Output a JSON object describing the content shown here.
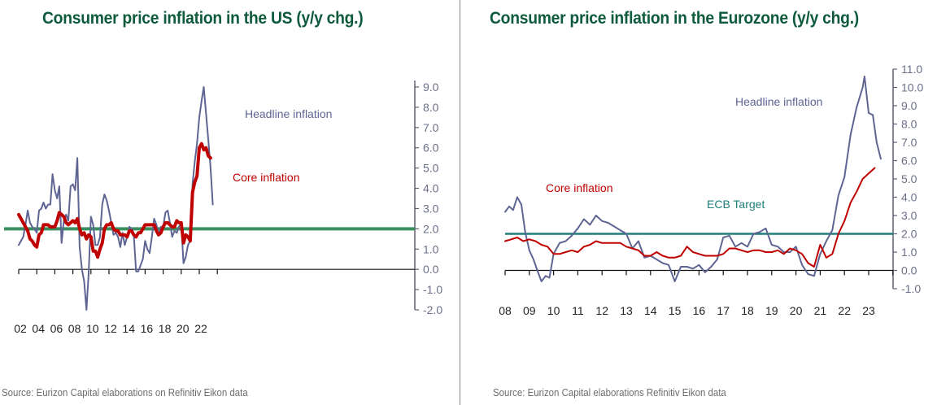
{
  "colors": {
    "title": "#0e5a3c",
    "headline": "#5e6593",
    "core": "#c00000",
    "us_target": "#3a8f5f",
    "ecb_target": "#1f7f7a",
    "axis": "#5f6075",
    "source": "#6d6d6d"
  },
  "chart_data": [
    {
      "type": "line",
      "title": "Consumer price inflation in the US (y/y chg.)",
      "xlabel": "",
      "ylabel": "",
      "x_tick_labels": [
        "02",
        "04",
        "06",
        "08",
        "10",
        "12",
        "14",
        "16",
        "18",
        "20",
        "22"
      ],
      "x_ticks": [
        2002,
        2004,
        2006,
        2008,
        2010,
        2012,
        2014,
        2016,
        2018,
        2020,
        2022
      ],
      "xlim": [
        2002,
        2024
      ],
      "y_tick_labels": [
        "9.0",
        "8.0",
        "7.0",
        "6.0",
        "5.0",
        "4.0",
        "3.0",
        "2.0",
        "1.0",
        "0.0",
        "-1.0",
        "-2.0"
      ],
      "y_ticks": [
        9,
        8,
        7,
        6,
        5,
        4,
        3,
        2,
        1,
        0,
        -1,
        -2
      ],
      "ylim": [
        -2,
        9
      ],
      "y_axis_side": "right",
      "grid": false,
      "reference_line": {
        "name": "Fed target",
        "value": 2.0
      },
      "annotations": [
        {
          "text": "Headline inflation",
          "series": "headline"
        },
        {
          "text": "Core inflation",
          "series": "core"
        }
      ],
      "source": "Source: Eurizon Capital elaborations on Refinitiv Eikon data",
      "series": [
        {
          "key": "headline",
          "name": "Headline inflation",
          "x": [
            2002.0,
            2002.25,
            2002.5,
            2002.75,
            2003.0,
            2003.25,
            2003.5,
            2003.75,
            2004.0,
            2004.25,
            2004.5,
            2004.75,
            2005.0,
            2005.25,
            2005.5,
            2005.75,
            2006.0,
            2006.25,
            2006.5,
            2006.75,
            2007.0,
            2007.25,
            2007.5,
            2007.75,
            2008.0,
            2008.25,
            2008.5,
            2008.75,
            2009.0,
            2009.25,
            2009.5,
            2009.75,
            2010.0,
            2010.25,
            2010.5,
            2010.75,
            2011.0,
            2011.25,
            2011.5,
            2011.75,
            2012.0,
            2012.25,
            2012.5,
            2012.75,
            2013.0,
            2013.25,
            2013.5,
            2013.75,
            2014.0,
            2014.25,
            2014.5,
            2014.75,
            2015.0,
            2015.25,
            2015.5,
            2015.75,
            2016.0,
            2016.25,
            2016.5,
            2016.75,
            2017.0,
            2017.25,
            2017.5,
            2017.75,
            2018.0,
            2018.25,
            2018.5,
            2018.75,
            2019.0,
            2019.25,
            2019.5,
            2019.75,
            2020.0,
            2020.25,
            2020.5,
            2020.75,
            2021.0,
            2021.25,
            2021.5,
            2021.75,
            2022.0,
            2022.25,
            2022.5,
            2022.75,
            2023.0,
            2023.25,
            2023.5
          ],
          "values": [
            1.2,
            1.4,
            1.6,
            2.2,
            2.9,
            2.3,
            2.1,
            2.0,
            1.8,
            2.9,
            3.0,
            3.3,
            3.0,
            3.2,
            3.2,
            4.7,
            3.9,
            3.5,
            4.1,
            1.3,
            2.4,
            2.7,
            2.4,
            4.1,
            4.2,
            3.9,
            5.5,
            1.1,
            0.0,
            -0.6,
            -2.0,
            -0.2,
            2.6,
            2.2,
            1.2,
            1.2,
            1.6,
            3.2,
            3.7,
            3.4,
            2.9,
            2.3,
            1.7,
            1.8,
            1.6,
            1.1,
            1.8,
            1.2,
            1.6,
            2.1,
            2.0,
            1.7,
            -0.1,
            -0.1,
            0.2,
            0.5,
            1.4,
            1.0,
            0.8,
            1.6,
            2.5,
            2.2,
            1.7,
            2.1,
            2.1,
            2.8,
            2.9,
            2.3,
            1.6,
            1.9,
            1.8,
            2.1,
            2.3,
            0.3,
            0.6,
            1.2,
            1.4,
            4.2,
            5.3,
            6.2,
            7.5,
            8.3,
            9.0,
            7.7,
            6.4,
            5.0,
            3.2
          ]
        },
        {
          "key": "core",
          "name": "Core inflation",
          "x": [
            2002.0,
            2002.25,
            2002.5,
            2002.75,
            2003.0,
            2003.25,
            2003.5,
            2003.75,
            2004.0,
            2004.25,
            2004.5,
            2004.75,
            2005.0,
            2005.25,
            2005.5,
            2005.75,
            2006.0,
            2006.25,
            2006.5,
            2006.75,
            2007.0,
            2007.25,
            2007.5,
            2007.75,
            2008.0,
            2008.25,
            2008.5,
            2008.75,
            2009.0,
            2009.25,
            2009.5,
            2009.75,
            2010.0,
            2010.25,
            2010.5,
            2010.75,
            2011.0,
            2011.25,
            2011.5,
            2011.75,
            2012.0,
            2012.25,
            2012.5,
            2012.75,
            2013.0,
            2013.25,
            2013.5,
            2013.75,
            2014.0,
            2014.25,
            2014.5,
            2014.75,
            2015.0,
            2015.25,
            2015.5,
            2015.75,
            2016.0,
            2016.25,
            2016.5,
            2016.75,
            2017.0,
            2017.25,
            2017.5,
            2017.75,
            2018.0,
            2018.25,
            2018.5,
            2018.75,
            2019.0,
            2019.25,
            2019.5,
            2019.75,
            2020.0,
            2020.25,
            2020.5,
            2020.75,
            2021.0,
            2021.25,
            2021.5,
            2021.75,
            2022.0,
            2022.25,
            2022.5,
            2022.75,
            2023.0,
            2023.25
          ],
          "values": [
            2.7,
            2.5,
            2.3,
            2.1,
            1.9,
            1.5,
            1.4,
            1.2,
            1.1,
            1.7,
            1.8,
            2.2,
            2.2,
            2.2,
            2.1,
            2.1,
            2.1,
            2.4,
            2.8,
            2.7,
            2.6,
            2.3,
            2.2,
            2.3,
            2.4,
            2.3,
            2.5,
            2.0,
            1.7,
            1.8,
            1.5,
            1.7,
            1.6,
            0.9,
            0.9,
            0.6,
            1.0,
            1.3,
            2.0,
            2.2,
            2.2,
            2.3,
            2.0,
            1.9,
            1.9,
            1.7,
            1.7,
            1.7,
            1.6,
            1.9,
            1.9,
            1.7,
            1.6,
            1.8,
            1.8,
            2.0,
            2.2,
            2.2,
            2.2,
            2.2,
            2.2,
            1.9,
            1.7,
            1.8,
            2.1,
            2.3,
            2.3,
            2.2,
            2.1,
            2.1,
            2.4,
            2.3,
            2.3,
            1.3,
            1.7,
            1.6,
            1.4,
            3.8,
            4.3,
            4.6,
            6.0,
            6.2,
            5.9,
            6.0,
            5.6,
            5.5
          ]
        }
      ]
    },
    {
      "type": "line",
      "title": "Consumer price inflation in the Eurozone (y/y chg.)",
      "xlabel": "",
      "ylabel": "",
      "x_tick_labels": [
        "08",
        "09",
        "10",
        "11",
        "12",
        "13",
        "14",
        "15",
        "16",
        "17",
        "18",
        "19",
        "20",
        "21",
        "22",
        "23"
      ],
      "x_ticks": [
        2008,
        2009,
        2010,
        2011,
        2012,
        2013,
        2014,
        2015,
        2016,
        2017,
        2018,
        2019,
        2020,
        2021,
        2022,
        2023
      ],
      "xlim": [
        2008,
        2024
      ],
      "y_tick_labels": [
        "11.0",
        "10.0",
        "9.0",
        "8.0",
        "7.0",
        "6.0",
        "5.0",
        "4.0",
        "3.0",
        "2.0",
        "1.0",
        "0.0",
        "-1.0"
      ],
      "y_ticks": [
        11,
        10,
        9,
        8,
        7,
        6,
        5,
        4,
        3,
        2,
        1,
        0,
        -1
      ],
      "ylim": [
        -1,
        11
      ],
      "y_axis_side": "right",
      "grid": false,
      "reference_line": {
        "name": "ECB Target",
        "value": 2.0
      },
      "annotations": [
        {
          "text": "Headline inflation",
          "series": "headline"
        },
        {
          "text": "Core inflation",
          "series": "core"
        },
        {
          "text": "ECB Target",
          "series": "target"
        }
      ],
      "source": "Source: Eurizon Capital elaborations Refinitiv Eikon data",
      "series": [
        {
          "key": "headline",
          "name": "Headline inflation",
          "x": [
            2008.0,
            2008.17,
            2008.33,
            2008.5,
            2008.67,
            2008.83,
            2009.0,
            2009.17,
            2009.33,
            2009.5,
            2009.67,
            2009.83,
            2010.0,
            2010.25,
            2010.5,
            2010.75,
            2011.0,
            2011.25,
            2011.5,
            2011.75,
            2012.0,
            2012.25,
            2012.5,
            2012.75,
            2013.0,
            2013.25,
            2013.5,
            2013.75,
            2014.0,
            2014.25,
            2014.5,
            2014.75,
            2015.0,
            2015.25,
            2015.5,
            2015.75,
            2016.0,
            2016.25,
            2016.5,
            2016.75,
            2017.0,
            2017.25,
            2017.5,
            2017.75,
            2018.0,
            2018.25,
            2018.5,
            2018.75,
            2019.0,
            2019.25,
            2019.5,
            2019.75,
            2020.0,
            2020.25,
            2020.5,
            2020.75,
            2021.0,
            2021.25,
            2021.5,
            2021.75,
            2022.0,
            2022.25,
            2022.5,
            2022.75,
            2022.83,
            2023.0,
            2023.17,
            2023.33,
            2023.5
          ],
          "values": [
            3.2,
            3.5,
            3.3,
            4.0,
            3.6,
            2.1,
            1.1,
            0.6,
            0.0,
            -0.6,
            -0.3,
            -0.4,
            0.9,
            1.5,
            1.6,
            1.9,
            2.3,
            2.8,
            2.5,
            3.0,
            2.7,
            2.6,
            2.4,
            2.2,
            2.0,
            1.2,
            1.6,
            0.7,
            0.8,
            0.6,
            0.4,
            0.3,
            -0.6,
            0.2,
            0.2,
            0.1,
            0.3,
            -0.1,
            0.2,
            0.6,
            1.8,
            1.9,
            1.3,
            1.5,
            1.3,
            2.0,
            2.1,
            2.3,
            1.4,
            1.3,
            1.0,
            1.0,
            1.3,
            0.3,
            -0.2,
            -0.3,
            0.9,
            1.6,
            2.2,
            4.1,
            5.1,
            7.4,
            8.9,
            10.0,
            10.6,
            8.6,
            8.5,
            7.0,
            6.1
          ]
        },
        {
          "key": "core",
          "name": "Core inflation",
          "x": [
            2008.0,
            2008.25,
            2008.5,
            2008.75,
            2009.0,
            2009.25,
            2009.5,
            2009.75,
            2010.0,
            2010.25,
            2010.5,
            2010.75,
            2011.0,
            2011.25,
            2011.5,
            2011.75,
            2012.0,
            2012.25,
            2012.5,
            2012.75,
            2013.0,
            2013.25,
            2013.5,
            2013.75,
            2014.0,
            2014.25,
            2014.5,
            2014.75,
            2015.0,
            2015.25,
            2015.5,
            2015.75,
            2016.0,
            2016.25,
            2016.5,
            2016.75,
            2017.0,
            2017.25,
            2017.5,
            2017.75,
            2018.0,
            2018.25,
            2018.5,
            2018.75,
            2019.0,
            2019.25,
            2019.5,
            2019.75,
            2020.0,
            2020.25,
            2020.5,
            2020.75,
            2021.0,
            2021.25,
            2021.5,
            2021.75,
            2022.0,
            2022.25,
            2022.5,
            2022.75,
            2023.0,
            2023.25
          ],
          "values": [
            1.6,
            1.7,
            1.8,
            1.6,
            1.7,
            1.6,
            1.4,
            1.3,
            0.9,
            0.9,
            1.0,
            1.1,
            1.0,
            1.3,
            1.4,
            1.6,
            1.5,
            1.5,
            1.5,
            1.5,
            1.3,
            1.2,
            1.1,
            0.8,
            0.8,
            1.0,
            0.8,
            0.7,
            0.7,
            0.8,
            1.3,
            1.0,
            0.9,
            0.8,
            0.8,
            0.8,
            0.9,
            1.2,
            1.2,
            1.1,
            1.0,
            1.1,
            1.1,
            1.0,
            1.0,
            1.1,
            0.9,
            1.2,
            1.1,
            0.9,
            0.4,
            0.2,
            1.4,
            0.7,
            0.9,
            2.0,
            2.7,
            3.7,
            4.3,
            5.0,
            5.3,
            5.6
          ]
        }
      ]
    }
  ]
}
